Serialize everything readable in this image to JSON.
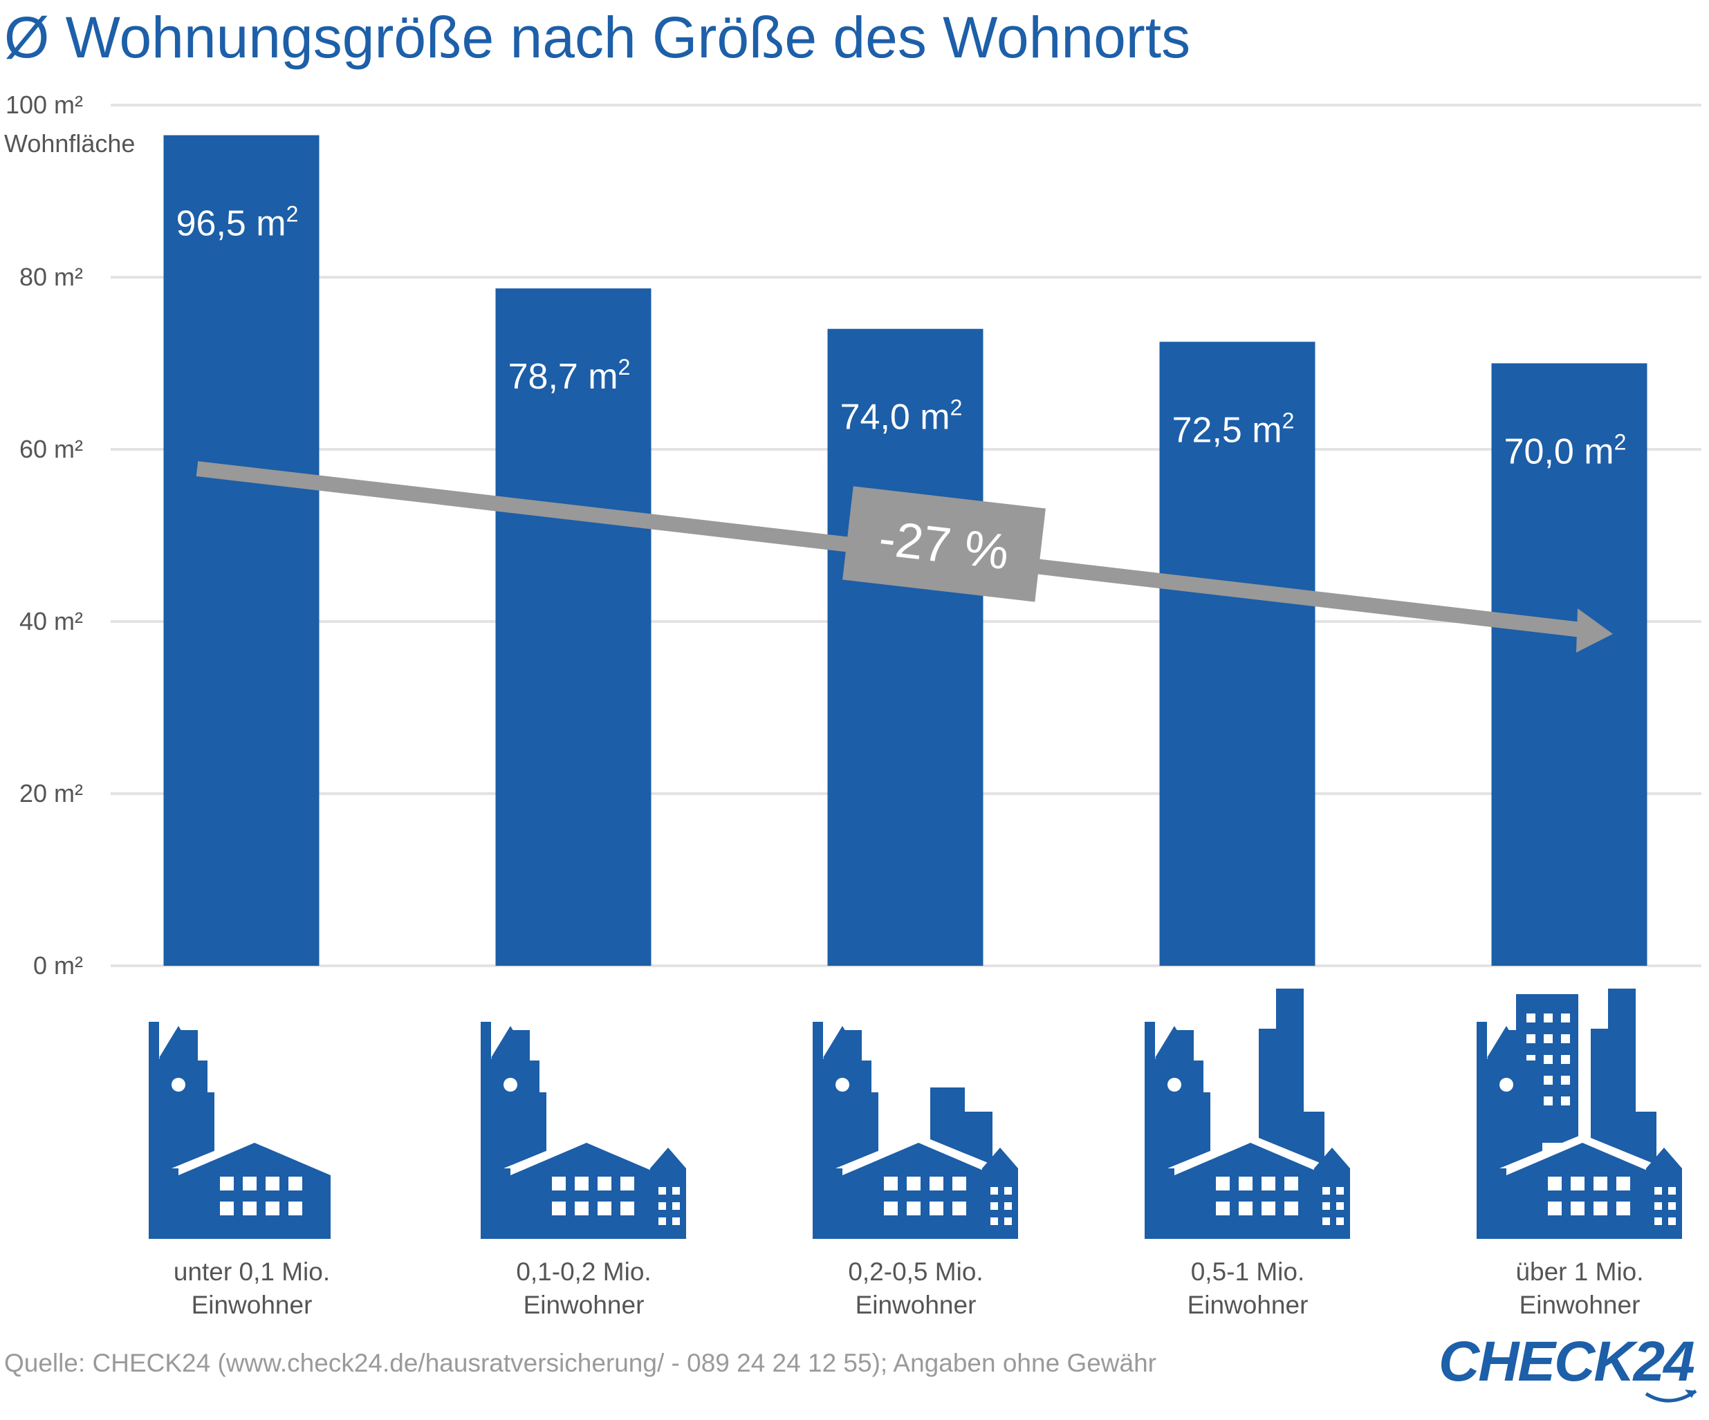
{
  "title": "Ø Wohnungsgröße nach Größe des Wohnorts",
  "colors": {
    "bar": "#1c5ea7",
    "grid": "#e3e3e3",
    "arrow": "#999999",
    "title": "#1d5fa8",
    "source": "#9a9a9a"
  },
  "chart_data": {
    "type": "bar",
    "title": "Ø Wohnungsgröße nach Größe des Wohnorts",
    "ylabel": "Wohnfläche",
    "ylim": [
      0,
      100
    ],
    "grid": true,
    "y_ticks": [
      {
        "value": 0,
        "label": "0 m²"
      },
      {
        "value": 20,
        "label": "20 m²"
      },
      {
        "value": 40,
        "label": "40 m²"
      },
      {
        "value": 60,
        "label": "60 m²"
      },
      {
        "value": 80,
        "label": "80 m²"
      },
      {
        "value": 100,
        "label": "100 m²"
      }
    ],
    "categories": [
      [
        "unter 0,1 Mio.",
        "Einwohner"
      ],
      [
        "0,1-0,2 Mio.",
        "Einwohner"
      ],
      [
        "0,2-0,5 Mio.",
        "Einwohner"
      ],
      [
        "0,5-1 Mio.",
        "Einwohner"
      ],
      [
        "über 1 Mio.",
        "Einwohner"
      ]
    ],
    "values": [
      96.5,
      78.7,
      74.0,
      72.5,
      70.0
    ],
    "data_labels": [
      "96,5 m",
      "78,7 m",
      "74,0 m",
      "72,5 m",
      "70,0 m"
    ],
    "data_label_superscript": "2",
    "annotation": {
      "text": "-27 %",
      "type": "trend-arrow"
    },
    "icons": [
      "small-town-icon",
      "town-icon",
      "small-city-icon",
      "city-icon",
      "big-city-icon"
    ]
  },
  "source": "Quelle: CHECK24 (www.check24.de/hausratversicherung/ - 089 24 24 12 55); Angaben ohne Gewähr",
  "logo": {
    "text": "CHECK24"
  }
}
